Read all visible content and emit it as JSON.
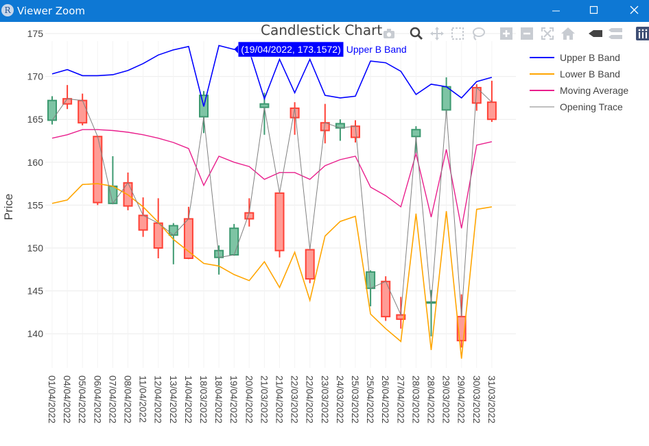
{
  "window": {
    "title": "Viewer Zoom",
    "app_icon_letter": "R"
  },
  "modebar": {
    "icons": [
      "camera-icon",
      "zoom-icon",
      "pan-icon",
      "box-select-icon",
      "lasso-icon",
      "zoom-in-icon",
      "zoom-out-icon",
      "autoscale-icon",
      "reset-axes-icon",
      "hover-closest-icon",
      "hover-compare-icon",
      "plotly-logo-icon"
    ]
  },
  "tooltip": {
    "text": "(19/04/2022, 173.1572)",
    "series": "Upper B Band",
    "bg": "#0000ff"
  },
  "colors": {
    "increasing": "#3d9970",
    "increasing_fill": "#7ec4a4",
    "decreasing": "#ff4136",
    "decreasing_fill": "#ff9c95",
    "upper": "#0000ff",
    "lower": "#ffa500",
    "ma": "#e91e8c",
    "open": "#808080"
  },
  "chart_data": {
    "type": "candlestick",
    "title": "Candlestick Chart",
    "xlabel": "",
    "ylabel": "Price",
    "ylim": [
      135.3,
      176.2
    ],
    "yticks": [
      140,
      145,
      150,
      155,
      160,
      165,
      170,
      175
    ],
    "grid": true,
    "legend_position": "top-right",
    "categories": [
      "01/04/2022",
      "04/04/2022",
      "05/04/2022",
      "06/04/2022",
      "07/04/2022",
      "08/04/2022",
      "11/04/2022",
      "12/04/2022",
      "13/04/2022",
      "14/04/2022",
      "18/03/2022",
      "18/04/2022",
      "19/04/2022",
      "20/04/2022",
      "21/03/2022",
      "21/04/2022",
      "22/03/2022",
      "22/04/2022",
      "23/03/2022",
      "24/03/2022",
      "25/03/2022",
      "25/04/2022",
      "26/04/2022",
      "27/04/2022",
      "28/03/2022",
      "28/04/2022",
      "29/03/2022",
      "29/04/2022",
      "30/03/2022",
      "31/03/2022"
    ],
    "candles": [
      {
        "open": 164.9,
        "high": 167.7,
        "low": 164.4,
        "close": 167.2
      },
      {
        "open": 167.4,
        "high": 169.0,
        "low": 166.2,
        "close": 166.8
      },
      {
        "open": 167.2,
        "high": 168.0,
        "low": 164.3,
        "close": 164.6
      },
      {
        "open": 163.0,
        "high": 163.0,
        "low": 155.0,
        "close": 155.3
      },
      {
        "open": 155.2,
        "high": 160.7,
        "low": 155.1,
        "close": 157.2
      },
      {
        "open": 157.6,
        "high": 158.8,
        "low": 154.4,
        "close": 154.9
      },
      {
        "open": 153.8,
        "high": 155.9,
        "low": 151.3,
        "close": 152.1
      },
      {
        "open": 152.9,
        "high": 155.8,
        "low": 148.8,
        "close": 150.0
      },
      {
        "open": 151.5,
        "high": 152.9,
        "low": 148.1,
        "close": 152.6
      },
      {
        "open": 153.4,
        "high": 154.8,
        "low": 148.7,
        "close": 148.8
      },
      {
        "open": 165.3,
        "high": 168.3,
        "low": 163.4,
        "close": 167.8
      },
      {
        "open": 148.9,
        "high": 150.3,
        "low": 146.9,
        "close": 149.7
      },
      {
        "open": 149.2,
        "high": 152.8,
        "low": 149.1,
        "close": 152.3
      },
      {
        "open": 154.1,
        "high": 155.8,
        "low": 152.5,
        "close": 153.4
      },
      {
        "open": 166.4,
        "high": 168.1,
        "low": 163.2,
        "close": 166.8
      },
      {
        "open": 156.4,
        "high": 156.4,
        "low": 148.9,
        "close": 149.7
      },
      {
        "open": 166.3,
        "high": 167.0,
        "low": 163.2,
        "close": 165.2
      },
      {
        "open": 149.8,
        "high": 149.8,
        "low": 145.9,
        "close": 146.4
      },
      {
        "open": 164.6,
        "high": 166.8,
        "low": 162.2,
        "close": 163.7
      },
      {
        "open": 164.0,
        "high": 165.0,
        "low": 162.5,
        "close": 164.5
      },
      {
        "open": 164.2,
        "high": 164.9,
        "low": 162.3,
        "close": 162.9
      },
      {
        "open": 145.3,
        "high": 147.4,
        "low": 143.2,
        "close": 147.2
      },
      {
        "open": 146.1,
        "high": 146.7,
        "low": 141.5,
        "close": 142.0
      },
      {
        "open": 142.2,
        "high": 144.3,
        "low": 140.6,
        "close": 141.7
      },
      {
        "open": 163.0,
        "high": 164.2,
        "low": 161.0,
        "close": 163.8
      },
      {
        "open": 143.6,
        "high": 145.1,
        "low": 139.7,
        "close": 143.7
      },
      {
        "open": 166.1,
        "high": 169.9,
        "low": 165.6,
        "close": 168.8
      },
      {
        "open": 142.0,
        "high": 144.6,
        "low": 138.4,
        "close": 139.2
      },
      {
        "open": 168.7,
        "high": 169.1,
        "low": 166.0,
        "close": 166.9
      },
      {
        "open": 167.0,
        "high": 169.5,
        "low": 164.7,
        "close": 165.0
      }
    ],
    "series": [
      {
        "name": "Upper B Band",
        "values": [
          170.3,
          170.8,
          170.1,
          170.1,
          170.2,
          170.7,
          171.5,
          172.5,
          173.1,
          173.5,
          166.5,
          173.6,
          173.16,
          173.0,
          167.4,
          172.0,
          168.1,
          172.0,
          167.8,
          167.5,
          167.7,
          171.8,
          171.6,
          170.6,
          167.9,
          169.1,
          168.8,
          167.5,
          169.4,
          169.9
        ]
      },
      {
        "name": "Lower B Band",
        "values": [
          155.2,
          155.6,
          157.4,
          157.5,
          157.2,
          156.2,
          154.8,
          153.0,
          151.0,
          149.6,
          148.2,
          147.9,
          146.9,
          146.2,
          148.4,
          145.4,
          149.5,
          143.9,
          151.4,
          153.1,
          153.7,
          142.3,
          140.6,
          139.1,
          154.0,
          138.1,
          154.3,
          137.1,
          154.5,
          154.8
        ]
      },
      {
        "name": "Moving Average",
        "values": [
          162.8,
          163.2,
          163.8,
          163.8,
          163.7,
          163.5,
          163.2,
          162.8,
          162.3,
          161.6,
          157.3,
          160.7,
          160.0,
          159.5,
          158.0,
          158.8,
          158.8,
          158.0,
          159.6,
          160.3,
          160.7,
          157.1,
          156.1,
          154.8,
          161.0,
          153.6,
          161.5,
          152.3,
          162.0,
          162.4
        ]
      },
      {
        "name": "Opening Trace",
        "values": [
          164.9,
          167.4,
          167.2,
          163.0,
          155.2,
          157.6,
          153.8,
          152.9,
          151.5,
          153.4,
          165.3,
          148.9,
          149.2,
          154.1,
          166.4,
          156.4,
          166.3,
          149.8,
          164.6,
          164.0,
          164.2,
          145.3,
          146.1,
          142.2,
          163.0,
          143.6,
          166.1,
          142.0,
          168.7,
          167.0
        ]
      }
    ]
  }
}
